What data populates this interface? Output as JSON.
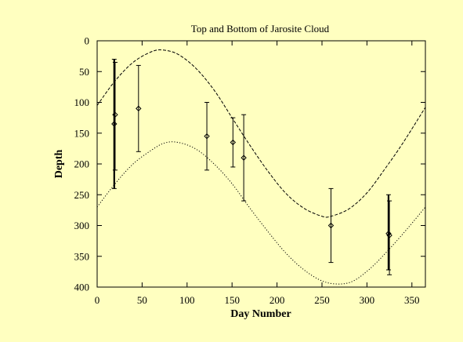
{
  "chart_data": {
    "type": "scatter",
    "title": "Top and Bottom of Jarosite Cloud",
    "xlabel": "Day Number",
    "ylabel": "Depth",
    "xlim": [
      0,
      365
    ],
    "ylim": [
      0,
      400
    ],
    "y_inverted": true,
    "xticks": [
      0,
      50,
      100,
      150,
      200,
      250,
      300,
      350
    ],
    "yticks": [
      0,
      50,
      100,
      150,
      200,
      250,
      300,
      350,
      400
    ],
    "grid": false,
    "legend": "none",
    "background_color": "#ffffc0",
    "curves": [
      {
        "style": "dashed",
        "points": [
          [
            0,
            105
          ],
          [
            20,
            65
          ],
          [
            40,
            35
          ],
          [
            60,
            18
          ],
          [
            73,
            15
          ],
          [
            90,
            22
          ],
          [
            110,
            45
          ],
          [
            130,
            80
          ],
          [
            150,
            125
          ],
          [
            170,
            170
          ],
          [
            190,
            212
          ],
          [
            210,
            248
          ],
          [
            230,
            272
          ],
          [
            250,
            285
          ],
          [
            260,
            285
          ],
          [
            280,
            273
          ],
          [
            300,
            247
          ],
          [
            320,
            208
          ],
          [
            340,
            166
          ],
          [
            365,
            108
          ]
        ]
      },
      {
        "style": "dotted",
        "points": [
          [
            0,
            270
          ],
          [
            20,
            232
          ],
          [
            40,
            200
          ],
          [
            60,
            178
          ],
          [
            75,
            166
          ],
          [
            90,
            165
          ],
          [
            110,
            176
          ],
          [
            130,
            200
          ],
          [
            150,
            232
          ],
          [
            170,
            272
          ],
          [
            190,
            310
          ],
          [
            210,
            345
          ],
          [
            230,
            372
          ],
          [
            250,
            390
          ],
          [
            268,
            395
          ],
          [
            285,
            390
          ],
          [
            305,
            368
          ],
          [
            325,
            338
          ],
          [
            345,
            305
          ],
          [
            365,
            270
          ]
        ]
      }
    ],
    "error_bars": [
      {
        "x": 19,
        "y_low": 30,
        "y_high": 240,
        "thick": true
      },
      {
        "x": 20,
        "y_low": 35,
        "y_high": 210,
        "thick": false
      },
      {
        "x": 46,
        "y_low": 40,
        "y_high": 180,
        "thick": false
      },
      {
        "x": 122,
        "y_low": 100,
        "y_high": 210,
        "thick": false
      },
      {
        "x": 151,
        "y_low": 125,
        "y_high": 205,
        "thick": false
      },
      {
        "x": 163,
        "y_low": 120,
        "y_high": 260,
        "thick": false
      },
      {
        "x": 260,
        "y_low": 240,
        "y_high": 360,
        "thick": false
      },
      {
        "x": 324,
        "y_low": 250,
        "y_high": 372,
        "thick": true
      },
      {
        "x": 325,
        "y_low": 260,
        "y_high": 380,
        "thick": false
      }
    ],
    "points": [
      {
        "x": 19,
        "y": 135
      },
      {
        "x": 20,
        "y": 120
      },
      {
        "x": 46,
        "y": 110
      },
      {
        "x": 122,
        "y": 155
      },
      {
        "x": 151,
        "y": 165
      },
      {
        "x": 163,
        "y": 190
      },
      {
        "x": 260,
        "y": 300
      },
      {
        "x": 324,
        "y": 313
      },
      {
        "x": 325,
        "y": 316
      }
    ]
  }
}
